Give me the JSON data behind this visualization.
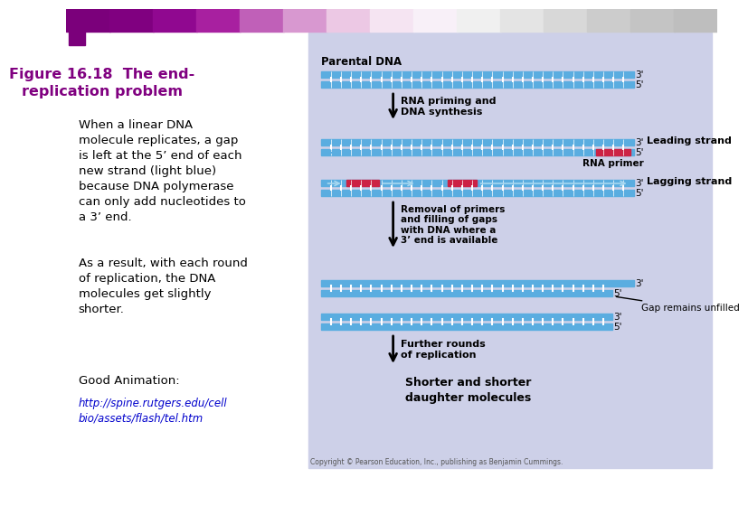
{
  "title": "Figure 16.18  The end-\nreplication problem",
  "title_color": "#800080",
  "bg_color": "#ffffff",
  "right_panel_bg": "#cdd0e8",
  "body_text": "When a linear DNA\nmolecule replicates, a gap\nis left at the 5’ end of each\nnew strand (light blue)\nbecause DNA polymerase\ncan only add nucleotides to\na 3’ end.",
  "body_text2": "As a result, with each round\nof replication, the DNA\nmolecules get slightly\nshorter.",
  "body_text3": "Good Animation:",
  "link_text": "http://spine.rutgers.edu/cell\nbio/assets/flash/tel.htm",
  "link_color": "#0000cc",
  "copyright_text": "Copyright © Pearson Education, Inc., publishing as Benjamin Cummings.",
  "parental_dna_label": "Parental DNA",
  "arrow1_label": "RNA priming and\nDNA synthesis",
  "leading_label": "Leading strand",
  "rna_primer_label": "RNA primer",
  "lagging_label": "Lagging strand",
  "arrow2_label": "Removal of primers\nand filling of gaps\nwith DNA where a\n3’ end is available",
  "gap_label": "Gap remains unfilled",
  "arrow3_label": "Further rounds\nof replication",
  "final_label": "Shorter and shorter\ndaughter molecules",
  "dna_blue_light": "#7bc4e2",
  "dna_blue_dark": "#3b8fc4",
  "dna_blue_mid": "#5aade0",
  "rna_red": "#cc2244",
  "tick_light": "#b8ddf0",
  "text_color": "#000000",
  "header_colors": [
    "#7b007b",
    "#800080",
    "#900890",
    "#a820a0",
    "#c060b8",
    "#d898d0",
    "#ecc8e4",
    "#f5e4f2",
    "#f8f0f8",
    "#f0f0f0",
    "#e4e4e4",
    "#d8d8d8",
    "#cccccc",
    "#c4c4c4",
    "#bebebe"
  ]
}
